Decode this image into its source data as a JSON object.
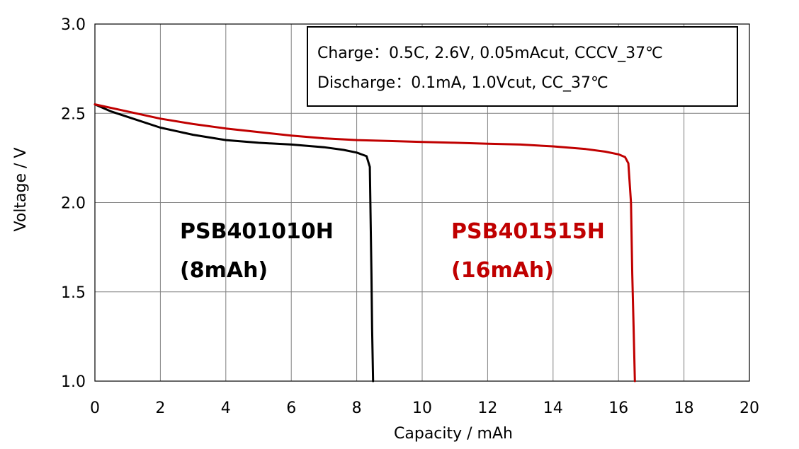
{
  "chart_data": {
    "type": "line",
    "xlabel": "Capacity / mAh",
    "ylabel": "Voltage / V",
    "xlim": [
      0,
      20
    ],
    "ylim": [
      1.0,
      3.0
    ],
    "xticks": [
      0,
      2,
      4,
      6,
      8,
      10,
      12,
      14,
      16,
      18,
      20
    ],
    "yticks": [
      1.0,
      1.5,
      2.0,
      2.5,
      3.0
    ],
    "xtick_labels": [
      "0",
      "2",
      "4",
      "6",
      "8",
      "10",
      "12",
      "14",
      "16",
      "18",
      "20"
    ],
    "ytick_labels": [
      "1.0",
      "1.5",
      "2.0",
      "2.5",
      "3.0"
    ],
    "grid": true,
    "conditions": {
      "charge": "Charge：0.5C, 2.6V, 0.05mAcut, CCCV_37℃",
      "discharge": "Discharge：0.1mA, 1.0Vcut, CC_37℃"
    },
    "series": [
      {
        "name": "PSB401010H",
        "capacity_label": "(8mAh)",
        "color": "#000000",
        "x": [
          0,
          0.5,
          1,
          2,
          3,
          4,
          5,
          6,
          7,
          7.6,
          8.0,
          8.3,
          8.4,
          8.45,
          8.47,
          8.5
        ],
        "y": [
          2.55,
          2.51,
          2.48,
          2.42,
          2.38,
          2.35,
          2.335,
          2.325,
          2.31,
          2.295,
          2.28,
          2.26,
          2.2,
          1.6,
          1.3,
          1.0
        ]
      },
      {
        "name": "PSB401515H",
        "capacity_label": "(16mAh)",
        "color": "#c00000",
        "x": [
          0,
          1,
          2,
          3,
          4,
          5,
          6,
          7,
          8,
          9,
          10,
          11,
          12,
          13,
          14,
          15,
          15.6,
          16.0,
          16.2,
          16.3,
          16.38,
          16.42,
          16.46,
          16.5
        ],
        "y": [
          2.55,
          2.51,
          2.47,
          2.44,
          2.415,
          2.395,
          2.375,
          2.36,
          2.35,
          2.345,
          2.34,
          2.335,
          2.33,
          2.325,
          2.315,
          2.3,
          2.285,
          2.27,
          2.255,
          2.22,
          2.0,
          1.6,
          1.3,
          1.0
        ]
      }
    ]
  }
}
